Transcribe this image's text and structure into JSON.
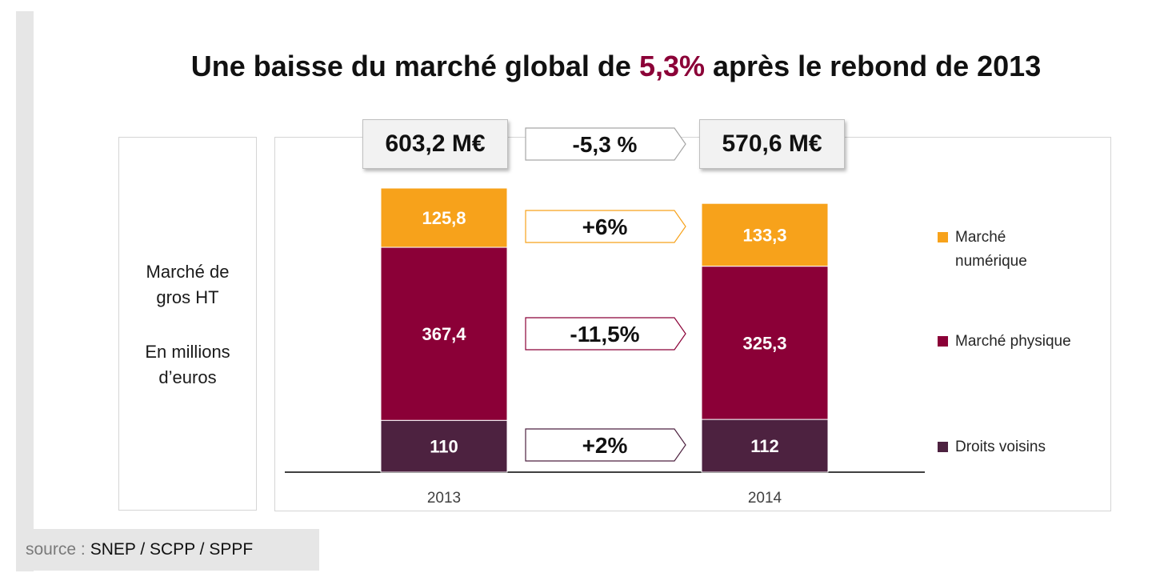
{
  "title": {
    "prefix": "Une baisse du marché global de",
    "highlight": "5,3%",
    "suffix": "après le rebond de 2013"
  },
  "ylabel": {
    "line1": "Marché de",
    "line2": "gros HT",
    "line3": "En millions",
    "line4": "d’euros"
  },
  "totals": {
    "left": "603,2 M€",
    "right": "570,6 M€",
    "change": "-5,3 %"
  },
  "changes": {
    "numerique": "+6%",
    "physique": "-11,5%",
    "droits": "+2%"
  },
  "colors": {
    "numerique": "#f7a21b",
    "physique": "#8b0037",
    "droits": "#4d2240",
    "title_highlight": "#8b0037"
  },
  "source": {
    "label": "source :",
    "value": "SNEP / SCPP / SPPF"
  },
  "chart_data": {
    "type": "bar",
    "stacked": true,
    "categories": [
      "2013",
      "2014"
    ],
    "series": [
      {
        "name": "Droits voisins",
        "values": [
          110,
          112
        ],
        "labels": [
          "110",
          "112"
        ]
      },
      {
        "name": "Marché physique",
        "values": [
          367.4,
          325.3
        ],
        "labels": [
          "367,4",
          "325,3"
        ]
      },
      {
        "name": "Marché numérique",
        "values": [
          125.8,
          133.3
        ],
        "labels": [
          "125,8",
          "133,3"
        ]
      }
    ],
    "legend": {
      "placement": "right",
      "items": [
        {
          "line1": "Marché",
          "line2": "numérique",
          "color": "#f7a21b"
        },
        {
          "line1": "Marché physique",
          "line2": "",
          "color": "#8b0037"
        },
        {
          "line1": "Droits voisins",
          "line2": "",
          "color": "#4d2240"
        }
      ]
    },
    "title": "Une baisse du marché global de 5,3% après le rebond de 2013",
    "xlabel": "",
    "ylabel": "Marché de gros HT En millions d’euros",
    "ylim": [
      0,
      603.2
    ],
    "grid": false
  }
}
